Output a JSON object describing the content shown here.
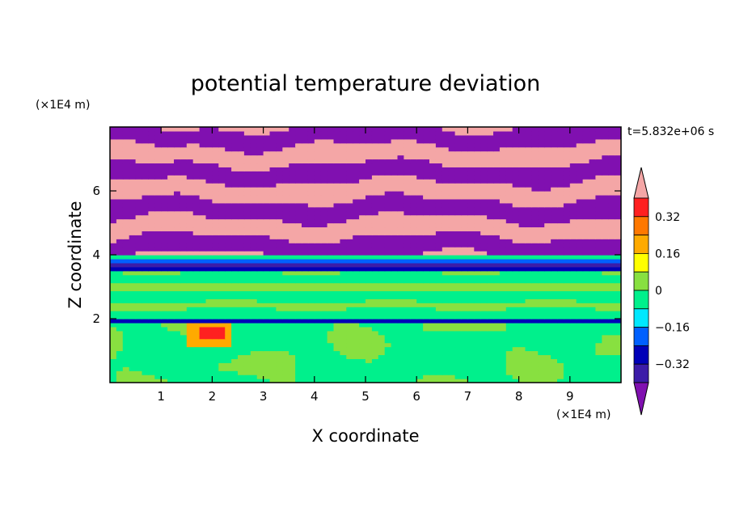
{
  "chart_data": {
    "type": "heatmap",
    "title": "potential temperature deviation",
    "xlabel": "X coordinate",
    "ylabel": "Z coordinate",
    "x_unit": "(×1E4 m)",
    "z_unit": "(×1E4 m)",
    "time_label": "t=5.832e+06 s",
    "xlim": [
      0,
      10
    ],
    "ylim": [
      0,
      8
    ],
    "x_ticks": [
      "1",
      "2",
      "3",
      "4",
      "5",
      "6",
      "7",
      "8",
      "9"
    ],
    "y_ticks": [
      "2",
      "4",
      "6"
    ],
    "colorbar": {
      "labels": [
        "0.32",
        "0.16",
        "0",
        "−0.16",
        "−0.32"
      ],
      "label_values": [
        0.32,
        0.16,
        0,
        -0.16,
        -0.32
      ],
      "levels": [
        {
          "min": 0.4,
          "max": null,
          "color": "#f4a6a6"
        },
        {
          "min": 0.32,
          "max": 0.4,
          "color": "#ff2020"
        },
        {
          "min": 0.24,
          "max": 0.32,
          "color": "#ff7800"
        },
        {
          "min": 0.16,
          "max": 0.24,
          "color": "#ffaa00"
        },
        {
          "min": 0.08,
          "max": 0.16,
          "color": "#ffff00"
        },
        {
          "min": 0.0,
          "max": 0.08,
          "color": "#88e040"
        },
        {
          "min": -0.08,
          "max": 0.0,
          "color": "#00f08c"
        },
        {
          "min": -0.16,
          "max": -0.08,
          "color": "#00e8ff"
        },
        {
          "min": -0.24,
          "max": -0.16,
          "color": "#0060ff"
        },
        {
          "min": -0.32,
          "max": -0.24,
          "color": "#0000b8"
        },
        {
          "min": -0.4,
          "max": -0.32,
          "color": "#3c1ca8"
        },
        {
          "min": null,
          "max": -0.4,
          "color": "#8010b0"
        }
      ]
    }
  }
}
